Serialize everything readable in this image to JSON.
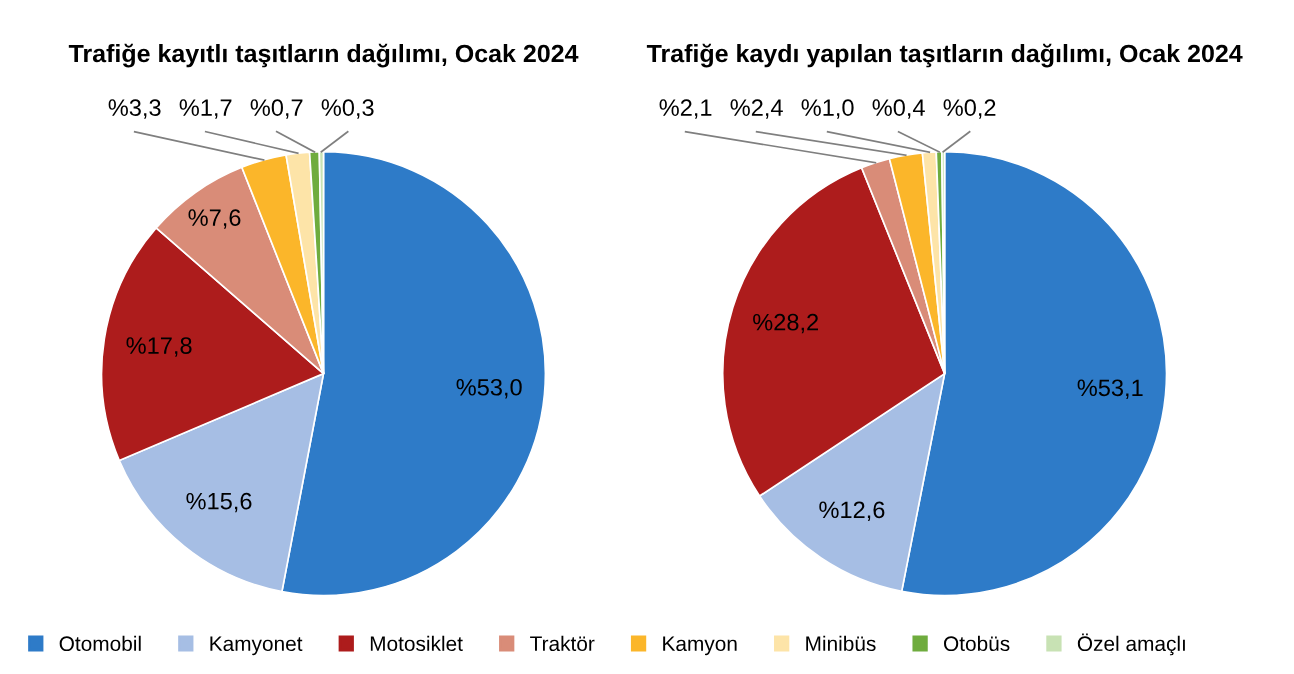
{
  "chart_data": [
    {
      "type": "pie",
      "title": "Trafiğe kayıtlı taşıtların dağılımı, Ocak 2024",
      "categories": [
        "Otomobil",
        "Kamyonet",
        "Motosiklet",
        "Traktör",
        "Kamyon",
        "Minibüs",
        "Otobüs",
        "Özel amaçlı"
      ],
      "values": [
        53.0,
        15.6,
        17.8,
        7.6,
        3.3,
        1.7,
        0.7,
        0.3
      ],
      "colors": [
        "#2e7bc8",
        "#a6bee4",
        "#ad1c1c",
        "#d98c78",
        "#fbb62a",
        "#fde4a8",
        "#6fac3e",
        "#c8e2b4"
      ],
      "value_labels": [
        "%53,0",
        "%15,6",
        "%17,8",
        "%7,6",
        "%3,3",
        "%1,7",
        "%0,7",
        "%0,3"
      ],
      "legend": "bottom"
    },
    {
      "type": "pie",
      "title": "Trafiğe kaydı yapılan taşıtların dağılımı, Ocak 2024",
      "categories": [
        null,
        null,
        null,
        null,
        null,
        null,
        null,
        null
      ],
      "values": [
        53.1,
        12.6,
        28.2,
        2.1,
        2.4,
        1.0,
        0.4,
        0.2
      ],
      "colors": [
        "#2e7bc8",
        "#a6bee4",
        "#ad1c1c",
        "#d98c78",
        "#fbb62a",
        "#fde4a8",
        "#6fac3e",
        "#c8e2b4"
      ],
      "value_labels": [
        "%53,1",
        "%12,6",
        "%28,2",
        "%2,1",
        "%2,4",
        "%1,0",
        "%0,4",
        "%0,2"
      ]
    }
  ]
}
